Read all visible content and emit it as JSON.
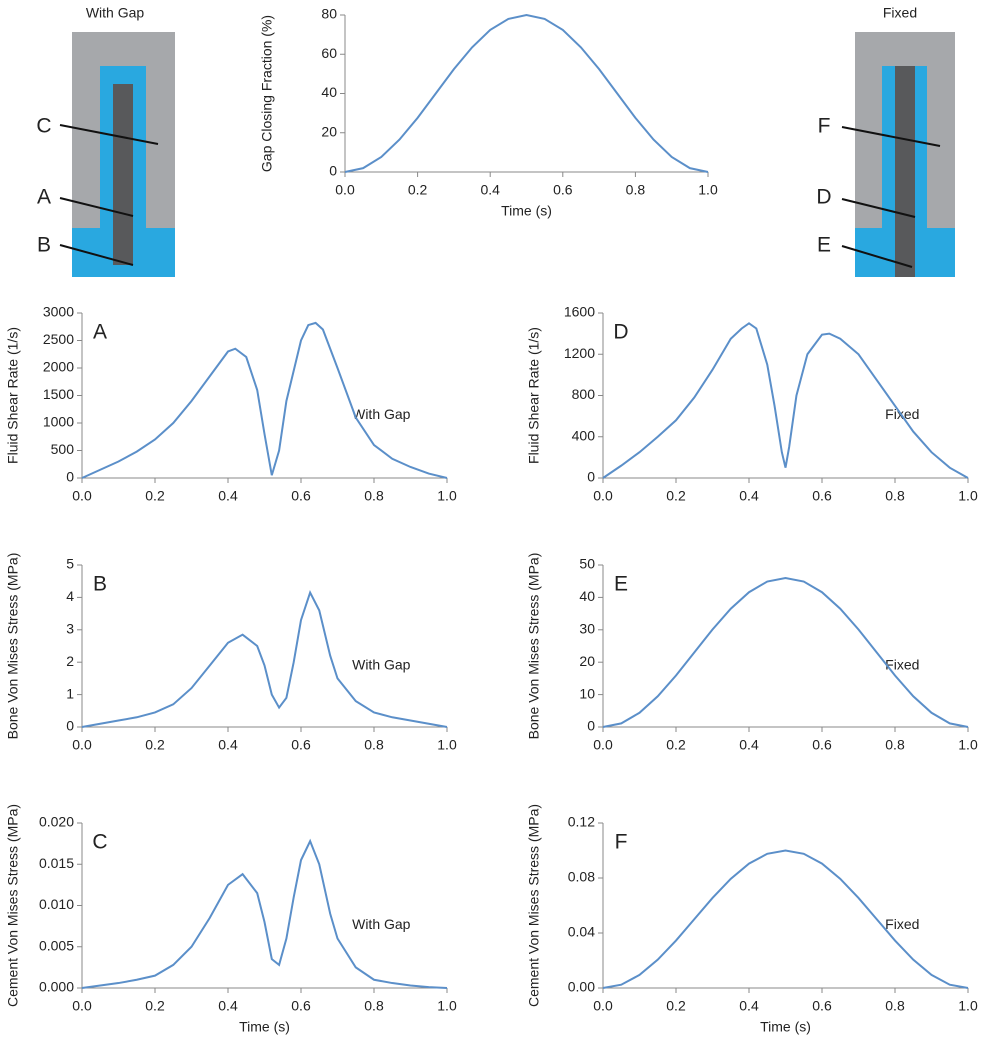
{
  "diagrams": [
    {
      "title": "With Gap",
      "labels": [
        "C",
        "A",
        "B"
      ]
    },
    {
      "title": "Fixed",
      "labels": [
        "F",
        "D",
        "E"
      ]
    }
  ],
  "chart_data": [
    {
      "type": "line",
      "ylabel": "Gap Closing Fraction (%)",
      "xlabel": "Time (s)",
      "color": "#5b8fc9",
      "x": [
        0,
        0.05,
        0.1,
        0.15,
        0.2,
        0.25,
        0.3,
        0.35,
        0.4,
        0.45,
        0.5,
        0.55,
        0.6,
        0.65,
        0.7,
        0.75,
        0.8,
        0.85,
        0.9,
        0.95,
        1
      ],
      "values": [
        0,
        1.96,
        7.64,
        16.5,
        27.6,
        40,
        52.4,
        63.5,
        72.4,
        78,
        80,
        78,
        72.4,
        63.5,
        52.4,
        40,
        27.6,
        16.5,
        7.64,
        1.96,
        0
      ],
      "xlim": [
        0,
        1
      ],
      "ylim": [
        0,
        80
      ],
      "xticks": [
        {
          "value": 0,
          "label": "0.0"
        },
        0.2,
        0.4,
        0.6,
        0.8,
        {
          "value": 1,
          "label": "1.0"
        }
      ],
      "yticks": [
        0,
        20,
        40,
        60,
        80
      ]
    },
    {
      "type": "line",
      "panel_label": "A",
      "annotation": "With Gap",
      "ylabel": "Fluid Shear Rate (1/s)",
      "color": "#5b8fc9",
      "x": [
        0,
        0.05,
        0.1,
        0.15,
        0.2,
        0.25,
        0.3,
        0.35,
        0.4,
        0.42,
        0.45,
        0.48,
        0.5,
        0.52,
        0.54,
        0.56,
        0.6,
        0.62,
        0.64,
        0.66,
        0.7,
        0.75,
        0.8,
        0.85,
        0.9,
        0.95,
        1
      ],
      "values": [
        0,
        150,
        300,
        480,
        700,
        1000,
        1400,
        1850,
        2300,
        2350,
        2200,
        1600,
        800,
        50,
        500,
        1400,
        2500,
        2780,
        2820,
        2700,
        2000,
        1100,
        600,
        350,
        200,
        80,
        0
      ],
      "xlim": [
        0,
        1
      ],
      "ylim": [
        0,
        3000
      ],
      "xticks": [
        {
          "value": 0,
          "label": "0.0"
        },
        0.2,
        0.4,
        0.6,
        0.8,
        {
          "value": 1,
          "label": "1.0"
        }
      ],
      "yticks": [
        0,
        500,
        1000,
        1500,
        2000,
        2500,
        3000
      ]
    },
    {
      "type": "line",
      "panel_label": "D",
      "annotation": "Fixed",
      "ylabel": "Fluid Shear Rate (1/s)",
      "color": "#5b8fc9",
      "x": [
        0,
        0.05,
        0.1,
        0.15,
        0.2,
        0.25,
        0.3,
        0.35,
        0.38,
        0.4,
        0.42,
        0.45,
        0.47,
        0.49,
        0.5,
        0.51,
        0.53,
        0.56,
        0.6,
        0.62,
        0.65,
        0.7,
        0.75,
        0.8,
        0.85,
        0.9,
        0.95,
        1
      ],
      "values": [
        0,
        120,
        250,
        400,
        560,
        780,
        1050,
        1350,
        1450,
        1500,
        1450,
        1100,
        700,
        250,
        100,
        300,
        800,
        1200,
        1390,
        1400,
        1350,
        1200,
        950,
        700,
        450,
        250,
        100,
        0
      ],
      "xlim": [
        0,
        1
      ],
      "ylim": [
        0,
        1600
      ],
      "xticks": [
        {
          "value": 0,
          "label": "0.0"
        },
        0.2,
        0.4,
        0.6,
        0.8,
        {
          "value": 1,
          "label": "1.0"
        }
      ],
      "yticks": [
        0,
        400,
        800,
        1200,
        1600
      ]
    },
    {
      "type": "line",
      "panel_label": "B",
      "annotation": "With Gap",
      "ylabel": "Bone Von Mises Stress (MPa)",
      "color": "#5b8fc9",
      "x": [
        0,
        0.05,
        0.1,
        0.15,
        0.2,
        0.25,
        0.3,
        0.35,
        0.4,
        0.44,
        0.48,
        0.5,
        0.52,
        0.54,
        0.56,
        0.58,
        0.6,
        0.625,
        0.65,
        0.68,
        0.7,
        0.75,
        0.8,
        0.85,
        0.9,
        0.95,
        1
      ],
      "values": [
        0,
        0.1,
        0.2,
        0.3,
        0.45,
        0.7,
        1.2,
        1.9,
        2.6,
        2.85,
        2.5,
        1.9,
        1.0,
        0.6,
        0.9,
        2.0,
        3.3,
        4.15,
        3.6,
        2.2,
        1.5,
        0.8,
        0.45,
        0.3,
        0.2,
        0.1,
        0
      ],
      "xlim": [
        0,
        1
      ],
      "ylim": [
        0,
        5
      ],
      "xticks": [
        {
          "value": 0,
          "label": "0.0"
        },
        0.2,
        0.4,
        0.6,
        0.8,
        {
          "value": 1,
          "label": "1.0"
        }
      ],
      "yticks": [
        0,
        1,
        2,
        3,
        4,
        5
      ]
    },
    {
      "type": "line",
      "panel_label": "E",
      "annotation": "Fixed",
      "ylabel": "Bone Von Mises Stress (MPa)",
      "color": "#5b8fc9",
      "x": [
        0,
        0.05,
        0.1,
        0.15,
        0.2,
        0.25,
        0.3,
        0.35,
        0.4,
        0.45,
        0.5,
        0.55,
        0.6,
        0.65,
        0.7,
        0.75,
        0.8,
        0.85,
        0.9,
        0.95,
        1
      ],
      "values": [
        0,
        1.12,
        4.39,
        9.48,
        15.9,
        23,
        30.1,
        36.5,
        41.6,
        44.9,
        46,
        44.9,
        41.6,
        36.5,
        30.1,
        23,
        15.9,
        9.48,
        4.39,
        1.12,
        0
      ],
      "xlim": [
        0,
        1
      ],
      "ylim": [
        0,
        50
      ],
      "xticks": [
        {
          "value": 0,
          "label": "0.0"
        },
        0.2,
        0.4,
        0.6,
        0.8,
        {
          "value": 1,
          "label": "1.0"
        }
      ],
      "yticks": [
        0,
        10,
        20,
        30,
        40,
        50
      ]
    },
    {
      "type": "line",
      "panel_label": "C",
      "annotation": "With Gap",
      "ylabel": "Cement Von Mises Stress (MPa)",
      "xlabel": "Time (s)",
      "color": "#5b8fc9",
      "x": [
        0,
        0.05,
        0.1,
        0.15,
        0.2,
        0.25,
        0.3,
        0.35,
        0.4,
        0.44,
        0.48,
        0.5,
        0.52,
        0.54,
        0.56,
        0.58,
        0.6,
        0.625,
        0.65,
        0.68,
        0.7,
        0.75,
        0.8,
        0.85,
        0.9,
        0.95,
        1
      ],
      "values": [
        0,
        0.0003,
        0.0006,
        0.001,
        0.0015,
        0.0028,
        0.005,
        0.0085,
        0.0125,
        0.0138,
        0.0115,
        0.008,
        0.0035,
        0.0028,
        0.006,
        0.011,
        0.0155,
        0.0178,
        0.015,
        0.009,
        0.006,
        0.0025,
        0.001,
        0.0006,
        0.0003,
        0.0001,
        0
      ],
      "xlim": [
        0,
        1
      ],
      "ylim": [
        0,
        0.02
      ],
      "xticks": [
        {
          "value": 0,
          "label": "0.0"
        },
        0.2,
        0.4,
        0.6,
        0.8,
        {
          "value": 1,
          "label": "1.0"
        }
      ],
      "yticks": [
        {
          "value": 0,
          "label": "0.000"
        },
        0.005,
        {
          "value": 0.01,
          "label": "0.010"
        },
        0.015,
        {
          "value": 0.02,
          "label": "0.020"
        }
      ]
    },
    {
      "type": "line",
      "panel_label": "F",
      "annotation": "Fixed",
      "ylabel": "Cement Von Mises Stress (MPa)",
      "xlabel": "Time (s)",
      "color": "#5b8fc9",
      "x": [
        0,
        0.05,
        0.1,
        0.15,
        0.2,
        0.25,
        0.3,
        0.35,
        0.4,
        0.45,
        0.5,
        0.55,
        0.6,
        0.65,
        0.7,
        0.75,
        0.8,
        0.85,
        0.9,
        0.95,
        1
      ],
      "values": [
        0,
        0.0024,
        0.0095,
        0.0206,
        0.0345,
        0.05,
        0.0655,
        0.0794,
        0.0905,
        0.0976,
        0.1,
        0.0976,
        0.0905,
        0.0794,
        0.0655,
        0.05,
        0.0345,
        0.0206,
        0.0095,
        0.0024,
        0
      ],
      "xlim": [
        0,
        1
      ],
      "ylim": [
        0,
        0.12
      ],
      "xticks": [
        {
          "value": 0,
          "label": "0.0"
        },
        0.2,
        0.4,
        0.6,
        0.8,
        {
          "value": 1,
          "label": "1.0"
        }
      ],
      "yticks": [
        {
          "value": 0,
          "label": "0.00"
        },
        0.04,
        0.08,
        0.12
      ]
    }
  ]
}
